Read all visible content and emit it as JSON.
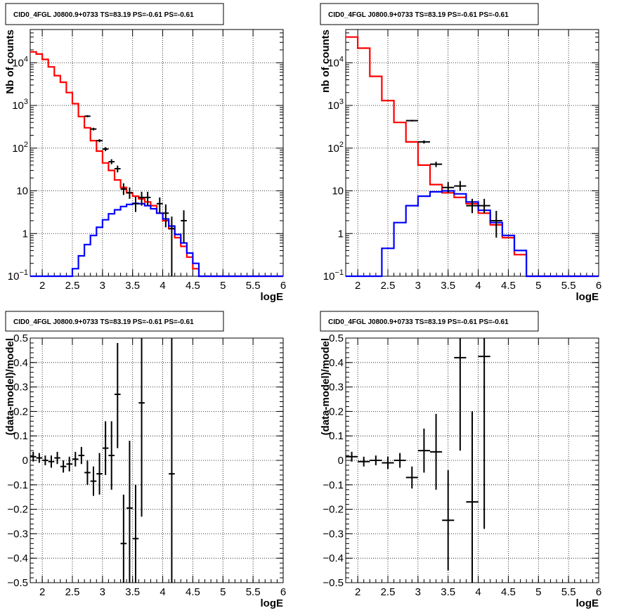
{
  "chart_data": [
    {
      "type": "histogram",
      "title": "CID0_4FGL J0800.9+0733 TS=83.19 PS=-0.61 PS=-0.61",
      "xlabel": "logE",
      "ylabel": "Nb of counts",
      "xlim": [
        1.8,
        6.0
      ],
      "ylim": [
        0.1,
        60000
      ],
      "yscale": "log",
      "grid": true,
      "xticks": [
        2,
        2.5,
        3,
        3.5,
        4,
        4.5,
        5,
        5.5,
        6
      ],
      "xtick_labels": [
        "2",
        "2.5",
        "3",
        "3.5",
        "4",
        "4.5",
        "5",
        "5.5",
        "6"
      ],
      "yticks": [
        0.1,
        1,
        10,
        100,
        1000,
        10000
      ],
      "ytick_labels": [
        {
          "base": "10",
          "exp": "−1"
        },
        {
          "base": "1",
          "exp": ""
        },
        {
          "base": "10",
          "exp": ""
        },
        {
          "base": "10",
          "exp": "2"
        },
        {
          "base": "10",
          "exp": "3"
        },
        {
          "base": "10",
          "exp": "4"
        }
      ],
      "bin_edges": [
        1.8,
        1.9,
        2.0,
        2.1,
        2.2,
        2.3,
        2.4,
        2.5,
        2.6,
        2.7,
        2.8,
        2.9,
        3.0,
        3.1,
        3.2,
        3.3,
        3.4,
        3.5,
        3.6,
        3.7,
        3.8,
        3.9,
        4.0,
        4.1,
        4.2,
        4.3,
        4.4,
        4.5,
        4.6,
        4.7,
        4.8,
        4.9,
        5.0,
        5.1,
        5.2,
        5.3,
        5.4,
        5.5,
        5.6,
        5.7,
        5.8,
        5.9,
        6.0
      ],
      "series": [
        {
          "color": "#ff0000",
          "values": [
            18000,
            16000,
            12000,
            8000,
            5000,
            3500,
            2000,
            1100,
            550,
            300,
            150,
            85,
            45,
            30,
            18,
            12,
            9,
            7.5,
            6.5,
            5.5,
            4.5,
            3,
            2,
            1.3,
            0.8,
            0.5,
            0.28,
            0.15,
            0.1,
            0.1,
            0.1,
            0.1,
            0.1,
            0.1,
            0.1,
            0.1,
            0.1,
            0.1,
            0.1,
            0.1,
            0.1,
            0.1
          ]
        },
        {
          "color": "#0000ff",
          "values": [
            0.1,
            0.1,
            0.1,
            0.1,
            0.1,
            0.1,
            0.1,
            0.15,
            0.3,
            0.55,
            0.9,
            1.4,
            2.1,
            2.9,
            3.6,
            4.3,
            4.8,
            5.1,
            5.0,
            4.5,
            3.8,
            3.0,
            2.2,
            1.5,
            0.95,
            0.6,
            0.35,
            0.2,
            0.1,
            0.1,
            0.1,
            0.1,
            0.1,
            0.1,
            0.1,
            0.1,
            0.1,
            0.1,
            0.1,
            0.1,
            0.1,
            0.1
          ]
        }
      ],
      "points": [
        {
          "x": 2.75,
          "y": 560,
          "lo": 530,
          "hi": 590
        },
        {
          "x": 2.85,
          "y": 280,
          "lo": 260,
          "hi": 300
        },
        {
          "x": 2.95,
          "y": 150,
          "lo": 138,
          "hi": 162
        },
        {
          "x": 3.05,
          "y": 95,
          "lo": 85,
          "hi": 105
        },
        {
          "x": 3.15,
          "y": 48,
          "lo": 42,
          "hi": 55
        },
        {
          "x": 3.25,
          "y": 33,
          "lo": 27,
          "hi": 39
        },
        {
          "x": 3.35,
          "y": 11,
          "lo": 8,
          "hi": 15
        },
        {
          "x": 3.45,
          "y": 9,
          "lo": 6.5,
          "hi": 12
        },
        {
          "x": 3.55,
          "y": 5,
          "lo": 3.2,
          "hi": 7.2
        },
        {
          "x": 3.65,
          "y": 7,
          "lo": 4.5,
          "hi": 9.5
        },
        {
          "x": 3.75,
          "y": 7,
          "lo": 4.5,
          "hi": 9.5
        },
        {
          "x": 3.95,
          "y": 5,
          "lo": 3,
          "hi": 7
        },
        {
          "x": 4.05,
          "y": 3,
          "lo": 1.4,
          "hi": 4.8
        },
        {
          "x": 4.15,
          "y": 1.3,
          "lo": 0.1,
          "hi": 2.5
        },
        {
          "x": 4.35,
          "y": 2,
          "lo": 0.6,
          "hi": 3.5
        }
      ]
    },
    {
      "type": "histogram",
      "title": "CID0_4FGL J0800.9+0733 TS=83.19 PS=-0.61 PS=-0.61",
      "xlabel": "logE",
      "ylabel": "nb of counts",
      "xlim": [
        1.8,
        6.0
      ],
      "ylim": [
        0.1,
        60000
      ],
      "yscale": "log",
      "grid": true,
      "xticks": [
        2,
        2.5,
        3,
        3.5,
        4,
        4.5,
        5,
        5.5,
        6
      ],
      "xtick_labels": [
        "2",
        "2.5",
        "3",
        "3.5",
        "4",
        "4.5",
        "5",
        "5.5",
        "6"
      ],
      "yticks": [
        0.1,
        1,
        10,
        100,
        1000,
        10000
      ],
      "ytick_labels": [
        {
          "base": "10",
          "exp": "−1"
        },
        {
          "base": "1",
          "exp": ""
        },
        {
          "base": "10",
          "exp": ""
        },
        {
          "base": "10",
          "exp": "2"
        },
        {
          "base": "10",
          "exp": "3"
        },
        {
          "base": "10",
          "exp": "4"
        }
      ],
      "bin_edges": [
        1.8,
        2.0,
        2.2,
        2.4,
        2.6,
        2.8,
        3.0,
        3.2,
        3.4,
        3.6,
        3.8,
        4.0,
        4.2,
        4.4,
        4.6,
        4.8,
        5.0,
        5.2,
        5.4,
        5.6,
        5.8,
        6.0
      ],
      "series": [
        {
          "color": "#ff0000",
          "values": [
            40000,
            22000,
            4800,
            1300,
            400,
            140,
            40,
            14,
            9,
            7,
            5,
            3,
            1.6,
            0.8,
            0.32,
            0.1,
            0.1,
            0.1,
            0.1,
            0.1,
            0.1
          ]
        },
        {
          "color": "#0000ff",
          "values": [
            0.1,
            0.1,
            0.1,
            0.45,
            1.8,
            4.5,
            7.5,
            9.5,
            10,
            8.5,
            5.5,
            3.5,
            1.8,
            0.9,
            0.4,
            0.1,
            0.1,
            0.1,
            0.1,
            0.1,
            0.1
          ]
        }
      ],
      "points": [
        {
          "x": 2.9,
          "y": 440,
          "lo": 420,
          "hi": 460
        },
        {
          "x": 3.1,
          "y": 140,
          "lo": 128,
          "hi": 152
        },
        {
          "x": 3.3,
          "y": 42,
          "lo": 36,
          "hi": 48
        },
        {
          "x": 3.5,
          "y": 12,
          "lo": 9,
          "hi": 16
        },
        {
          "x": 3.7,
          "y": 13,
          "lo": 10,
          "hi": 17
        },
        {
          "x": 3.9,
          "y": 4.5,
          "lo": 3,
          "hi": 6.5
        },
        {
          "x": 4.1,
          "y": 4.5,
          "lo": 3,
          "hi": 6.5
        },
        {
          "x": 4.3,
          "y": 2,
          "lo": 0.8,
          "hi": 3.4
        }
      ]
    },
    {
      "type": "scatter",
      "title": "CID0_4FGL J0800.9+0733 TS=83.19 PS=-0.61 PS=-0.61",
      "xlabel": "logE",
      "ylabel": "(data-model)/model",
      "xlim": [
        1.8,
        6.0
      ],
      "ylim": [
        -0.5,
        0.5
      ],
      "grid": true,
      "xticks": [
        2,
        2.5,
        3,
        3.5,
        4,
        4.5,
        5,
        5.5,
        6
      ],
      "xtick_labels": [
        "2",
        "2.5",
        "3",
        "3.5",
        "4",
        "4.5",
        "5",
        "5.5",
        "6"
      ],
      "yticks": [
        -0.5,
        -0.4,
        -0.3,
        -0.2,
        -0.1,
        0,
        0.1,
        0.2,
        0.3,
        0.4,
        0.5
      ],
      "ytick_labels": [
        "−0.5",
        "−0.4",
        "−0.3",
        "−0.2",
        "−0.1",
        "0",
        "0.1",
        "0.2",
        "0.3",
        "0.4",
        "0.5"
      ],
      "points": [
        {
          "x": 1.85,
          "y": 0.015,
          "hw": 0.05,
          "lo": -0.005,
          "hi": 0.035
        },
        {
          "x": 1.95,
          "y": 0.01,
          "hw": 0.05,
          "lo": -0.01,
          "hi": 0.03
        },
        {
          "x": 2.05,
          "y": 0.0,
          "hw": 0.05,
          "lo": -0.02,
          "hi": 0.02
        },
        {
          "x": 2.15,
          "y": -0.005,
          "hw": 0.05,
          "lo": -0.03,
          "hi": 0.02
        },
        {
          "x": 2.25,
          "y": 0.01,
          "hw": 0.05,
          "lo": -0.015,
          "hi": 0.035
        },
        {
          "x": 2.35,
          "y": -0.025,
          "hw": 0.05,
          "lo": -0.05,
          "hi": 0.0
        },
        {
          "x": 2.45,
          "y": -0.015,
          "hw": 0.05,
          "lo": -0.045,
          "hi": 0.015
        },
        {
          "x": 2.55,
          "y": 0.005,
          "hw": 0.05,
          "lo": -0.025,
          "hi": 0.035
        },
        {
          "x": 2.65,
          "y": 0.02,
          "hw": 0.05,
          "lo": -0.015,
          "hi": 0.055
        },
        {
          "x": 2.75,
          "y": -0.05,
          "hw": 0.05,
          "lo": -0.1,
          "hi": 0.0
        },
        {
          "x": 2.85,
          "y": -0.085,
          "hw": 0.05,
          "lo": -0.145,
          "hi": -0.025
        },
        {
          "x": 2.95,
          "y": -0.055,
          "hw": 0.05,
          "lo": -0.14,
          "hi": 0.03
        },
        {
          "x": 3.05,
          "y": 0.05,
          "hw": 0.05,
          "lo": -0.06,
          "hi": 0.16
        },
        {
          "x": 3.15,
          "y": 0.02,
          "hw": 0.05,
          "lo": -0.12,
          "hi": 0.16
        },
        {
          "x": 3.25,
          "y": 0.27,
          "hw": 0.05,
          "lo": 0.05,
          "hi": 0.48
        },
        {
          "x": 3.35,
          "y": -0.34,
          "hw": 0.05,
          "lo": -0.5,
          "hi": -0.14
        },
        {
          "x": 3.45,
          "y": -0.195,
          "hw": 0.05,
          "lo": -0.5,
          "hi": 0.08
        },
        {
          "x": 3.55,
          "y": -0.32,
          "hw": 0.05,
          "lo": -0.5,
          "hi": -0.1
        },
        {
          "x": 3.65,
          "y": 0.235,
          "hw": 0.05,
          "lo": -0.23,
          "hi": 0.5
        },
        {
          "x": 4.15,
          "y": -0.055,
          "hw": 0.05,
          "lo": -0.5,
          "hi": 0.5
        }
      ]
    },
    {
      "type": "scatter",
      "title": "CID0_4FGL J0800.9+0733 TS=83.19 PS=-0.61 PS=-0.61",
      "xlabel": "logE",
      "ylabel": "(data-model)/model",
      "xlim": [
        1.8,
        6.0
      ],
      "ylim": [
        -0.5,
        0.5
      ],
      "grid": true,
      "xticks": [
        2,
        2.5,
        3,
        3.5,
        4,
        4.5,
        5,
        5.5,
        6
      ],
      "xtick_labels": [
        "2",
        "2.5",
        "3",
        "3.5",
        "4",
        "4.5",
        "5",
        "5.5",
        "6"
      ],
      "yticks": [
        -0.5,
        -0.4,
        -0.3,
        -0.2,
        -0.1,
        0,
        0.1,
        0.2,
        0.3,
        0.4,
        0.5
      ],
      "ytick_labels": [
        "−0.5",
        "−0.4",
        "−0.3",
        "−0.2",
        "−0.1",
        "0",
        "0.1",
        "0.2",
        "0.3",
        "0.4",
        "0.5"
      ],
      "points": [
        {
          "x": 1.9,
          "y": 0.015,
          "hw": 0.1,
          "lo": -0.005,
          "hi": 0.035
        },
        {
          "x": 2.1,
          "y": -0.005,
          "hw": 0.1,
          "lo": -0.025,
          "hi": 0.015
        },
        {
          "x": 2.3,
          "y": 0.0,
          "hw": 0.1,
          "lo": -0.02,
          "hi": 0.02
        },
        {
          "x": 2.5,
          "y": -0.01,
          "hw": 0.1,
          "lo": -0.035,
          "hi": 0.015
        },
        {
          "x": 2.7,
          "y": 0.0,
          "hw": 0.1,
          "lo": -0.03,
          "hi": 0.03
        },
        {
          "x": 2.9,
          "y": -0.07,
          "hw": 0.1,
          "lo": -0.115,
          "hi": -0.025
        },
        {
          "x": 3.1,
          "y": 0.04,
          "hw": 0.1,
          "lo": -0.05,
          "hi": 0.13
        },
        {
          "x": 3.3,
          "y": 0.035,
          "hw": 0.1,
          "lo": -0.12,
          "hi": 0.19
        },
        {
          "x": 3.5,
          "y": -0.245,
          "hw": 0.1,
          "lo": -0.45,
          "hi": -0.04
        },
        {
          "x": 3.7,
          "y": 0.42,
          "hw": 0.1,
          "lo": 0.04,
          "hi": 0.5
        },
        {
          "x": 3.9,
          "y": -0.17,
          "hw": 0.1,
          "lo": -0.5,
          "hi": 0.2
        },
        {
          "x": 4.1,
          "y": 0.425,
          "hw": 0.1,
          "lo": -0.28,
          "hi": 0.5
        }
      ]
    }
  ]
}
